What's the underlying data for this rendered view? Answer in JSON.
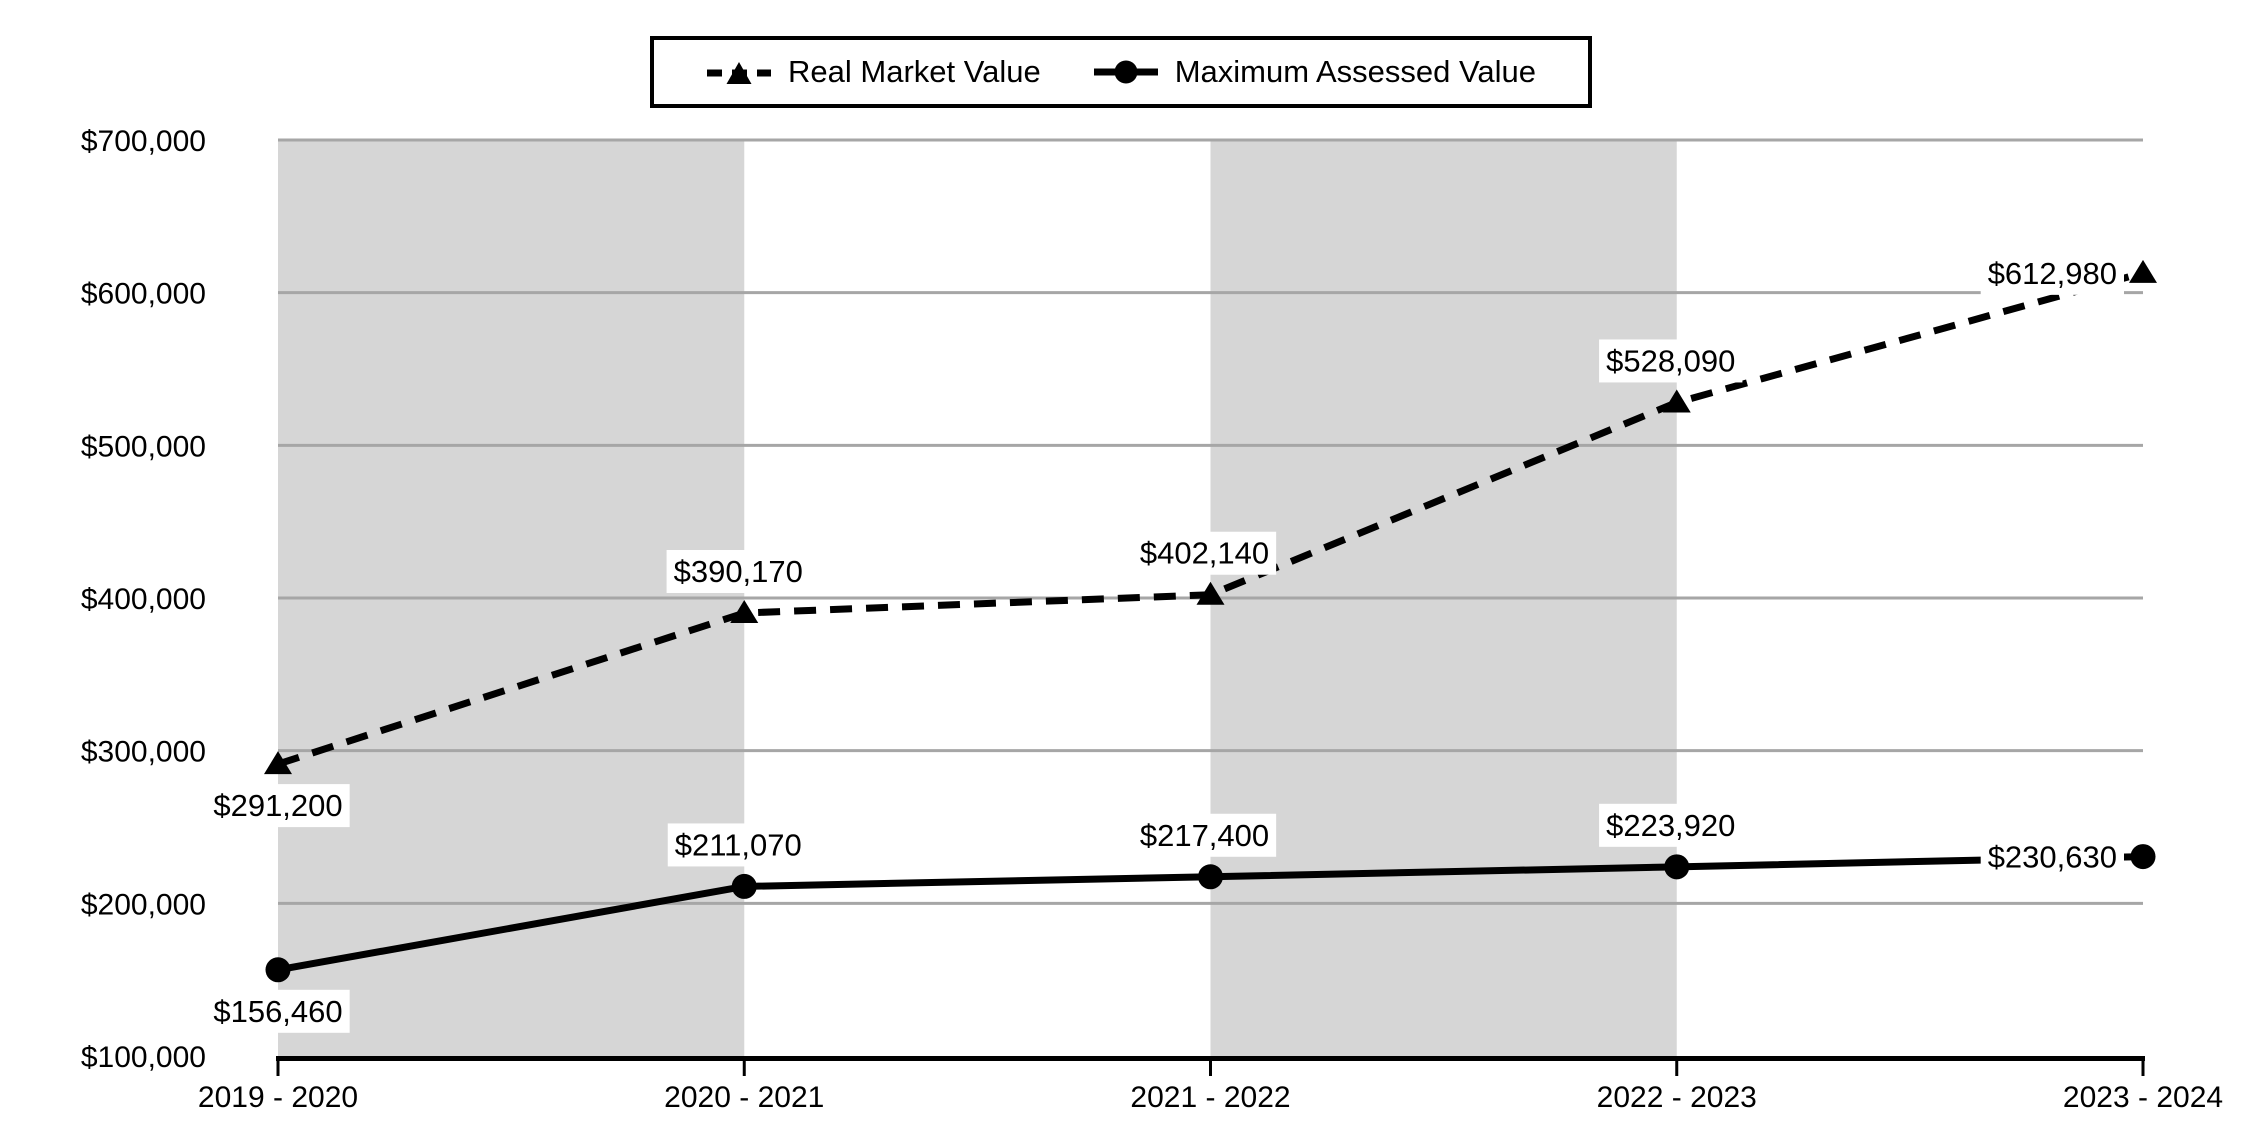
{
  "colors": {
    "background": "#ffffff",
    "series": "#000000",
    "gridline": "#a6a6a6",
    "band": "#d6d6d6",
    "axis": "#000000",
    "text": "#000000",
    "label_background": "#ffffff"
  },
  "legend": {
    "items": [
      {
        "label": "Real Market Value",
        "marker": "dashed-line-triangle"
      },
      {
        "label": "Maximum Assessed Value",
        "marker": "solid-line-circle"
      }
    ],
    "position": "top"
  },
  "chart_data": {
    "type": "line",
    "title": "",
    "categories": [
      "2019 - 2020",
      "2020 - 2021",
      "2021 - 2022",
      "2022 - 2023",
      "2023 - 2024"
    ],
    "series": [
      {
        "name": "Real Market Value",
        "line_style": "dashed",
        "marker": "triangle",
        "values": [
          291200,
          390170,
          402140,
          528090,
          612980
        ],
        "data_labels": [
          "$291,200",
          "$390,170",
          "$402,140",
          "$528,090",
          "$612,980"
        ],
        "label_positions": [
          "below",
          "above",
          "above",
          "above",
          "left"
        ]
      },
      {
        "name": "Maximum Assessed Value",
        "line_style": "solid",
        "marker": "circle",
        "values": [
          156460,
          211070,
          217400,
          223920,
          230630
        ],
        "data_labels": [
          "$156,460",
          "$211,070",
          "$217,400",
          "$223,920",
          "$230,630"
        ],
        "label_positions": [
          "below",
          "above",
          "above",
          "above",
          "left"
        ]
      }
    ],
    "y_axis": {
      "min": 100000,
      "max": 700000,
      "step": 100000,
      "tick_labels": [
        "$100,000",
        "$200,000",
        "$300,000",
        "$400,000",
        "$500,000",
        "$600,000",
        "$700,000"
      ]
    },
    "plot_bands": {
      "category_ranges": [
        [
          0,
          1
        ],
        [
          2,
          3
        ]
      ]
    },
    "grid": "horizontal",
    "legend_position": "top"
  }
}
